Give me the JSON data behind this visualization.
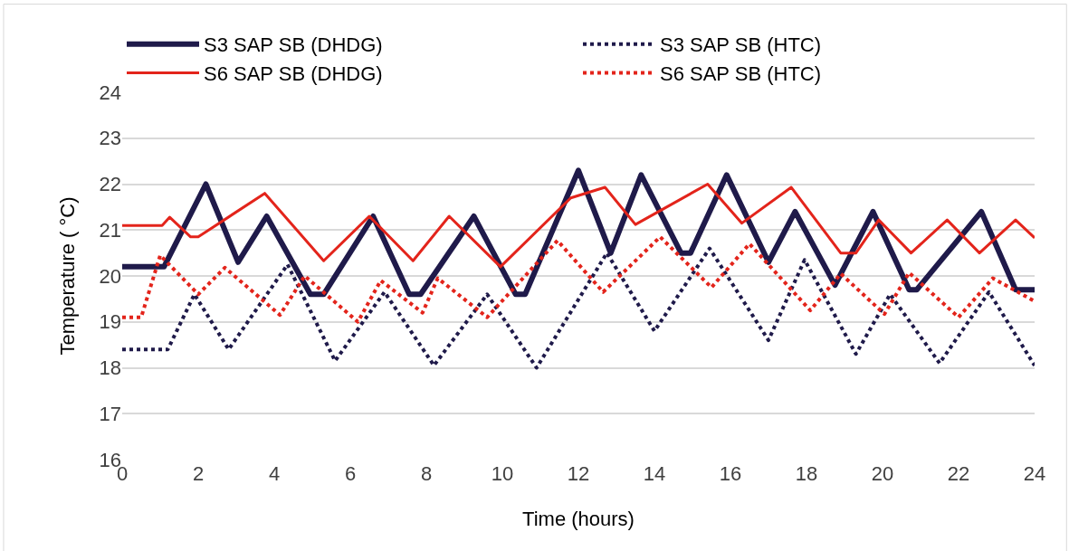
{
  "chart_data": {
    "type": "line",
    "xlabel": "Time (hours)",
    "ylabel": "Temperature ( °C)",
    "xlim": [
      0,
      24
    ],
    "xticks": [
      0,
      2,
      4,
      6,
      8,
      10,
      12,
      14,
      16,
      18,
      20,
      22,
      24
    ],
    "ylim": [
      16,
      24
    ],
    "yticks": [
      16,
      17,
      18,
      19,
      20,
      21,
      22,
      23,
      24
    ],
    "grid": "y",
    "legend": "top",
    "marker": "none",
    "series": [
      {
        "name": "S3 SAP SB (DHDG)",
        "color": "#1f1a4a",
        "line_style": "solid",
        "x": [
          0,
          1.1,
          2.2,
          3.05,
          3.8,
          4.95,
          5.3,
          6.6,
          7.55,
          7.85,
          9.25,
          10.35,
          10.6,
          12.0,
          12.85,
          13.65,
          14.7,
          14.95,
          15.9,
          17.0,
          17.7,
          18.75,
          19.75,
          20.7,
          20.9,
          22.6,
          23.5,
          24
        ],
        "values": [
          20.2,
          20.2,
          22.0,
          20.3,
          21.3,
          19.6,
          19.6,
          21.3,
          19.6,
          19.6,
          21.3,
          19.6,
          19.6,
          22.3,
          20.5,
          22.2,
          20.5,
          20.5,
          22.2,
          20.3,
          21.4,
          19.8,
          21.4,
          19.7,
          19.7,
          21.4,
          19.7,
          19.7
        ]
      },
      {
        "name": "S3 SAP SB (HTC)",
        "color": "#1f1a4a",
        "line_style": "dotted",
        "x": [
          0,
          1.2,
          1.9,
          2.8,
          4.35,
          5.6,
          6.9,
          8.2,
          9.6,
          10.9,
          12.75,
          14.0,
          15.45,
          17.0,
          17.95,
          19.3,
          20.2,
          21.5,
          22.8,
          24
        ],
        "values": [
          18.4,
          18.4,
          19.6,
          18.4,
          20.25,
          18.15,
          19.65,
          18.05,
          19.6,
          18.0,
          20.5,
          18.8,
          20.6,
          18.6,
          20.35,
          18.3,
          19.6,
          18.1,
          19.65,
          18.05
        ]
      },
      {
        "name": "S6 SAP SB (DHDG)",
        "color": "#e3241b",
        "line_style": "solid",
        "x": [
          0,
          1.05,
          1.25,
          1.8,
          2.0,
          3.75,
          5.3,
          6.5,
          7.65,
          8.6,
          9.95,
          11.8,
          12.7,
          13.5,
          15.4,
          16.3,
          17.6,
          18.9,
          19.3,
          19.9,
          20.75,
          21.7,
          22.55,
          23.5,
          24
        ],
        "values": [
          21.1,
          21.1,
          21.28,
          20.85,
          20.85,
          21.8,
          20.33,
          21.3,
          20.33,
          21.3,
          20.2,
          21.7,
          21.93,
          21.12,
          22.0,
          21.15,
          21.93,
          20.5,
          20.5,
          21.22,
          20.5,
          21.22,
          20.5,
          21.22,
          20.83
        ]
      },
      {
        "name": "S6 SAP SB (HTC)",
        "color": "#e3241b",
        "line_style": "dotted",
        "x": [
          0,
          0.5,
          1.0,
          2.0,
          2.7,
          4.15,
          4.8,
          6.2,
          6.8,
          7.9,
          8.3,
          9.6,
          11.45,
          12.65,
          14.15,
          15.5,
          16.5,
          18.1,
          18.9,
          20.05,
          20.7,
          22.0,
          22.9,
          24
        ],
        "values": [
          19.1,
          19.1,
          20.45,
          19.6,
          20.18,
          19.15,
          20.0,
          19.0,
          19.9,
          19.2,
          19.95,
          19.1,
          20.77,
          19.65,
          20.85,
          19.75,
          20.7,
          19.25,
          20.05,
          19.17,
          20.07,
          19.1,
          19.95,
          19.45
        ]
      }
    ]
  }
}
